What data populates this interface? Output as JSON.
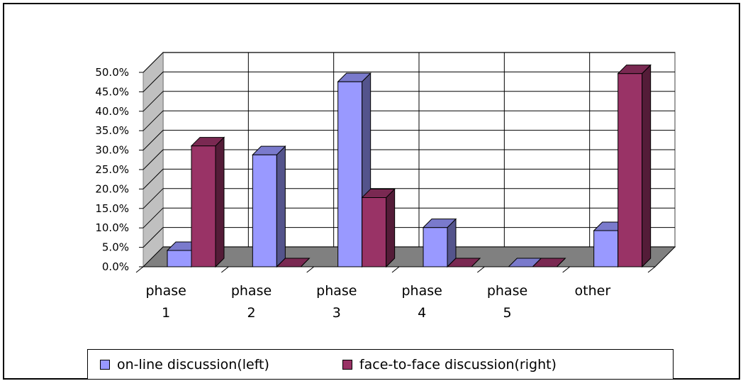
{
  "chart_data": {
    "type": "bar",
    "categories": [
      [
        "phase",
        "1"
      ],
      [
        "phase",
        "2"
      ],
      [
        "phase",
        "3"
      ],
      [
        "phase",
        "4"
      ],
      [
        "phase",
        "5"
      ],
      [
        "other",
        ""
      ]
    ],
    "series": [
      {
        "name": "on-line discussion(left)",
        "values": [
          4.2,
          28.8,
          47.6,
          10.1,
          0.0,
          9.3
        ],
        "color": "#9999FF"
      },
      {
        "name": "face-to-face discussion(right)",
        "values": [
          31.1,
          0.0,
          17.8,
          0.0,
          0.0,
          49.7
        ],
        "color": "#993366"
      }
    ],
    "yticks": [
      "0.0%",
      "5.0%",
      "10.0%",
      "15.0%",
      "20.0%",
      "25.0%",
      "30.0%",
      "35.0%",
      "40.0%",
      "45.0%",
      "50.0%"
    ],
    "ylim": [
      0,
      50
    ],
    "title": "",
    "xlabel": "",
    "ylabel": "",
    "legend_position": "bottom",
    "grid": true,
    "style": "3d-clustered-column"
  }
}
